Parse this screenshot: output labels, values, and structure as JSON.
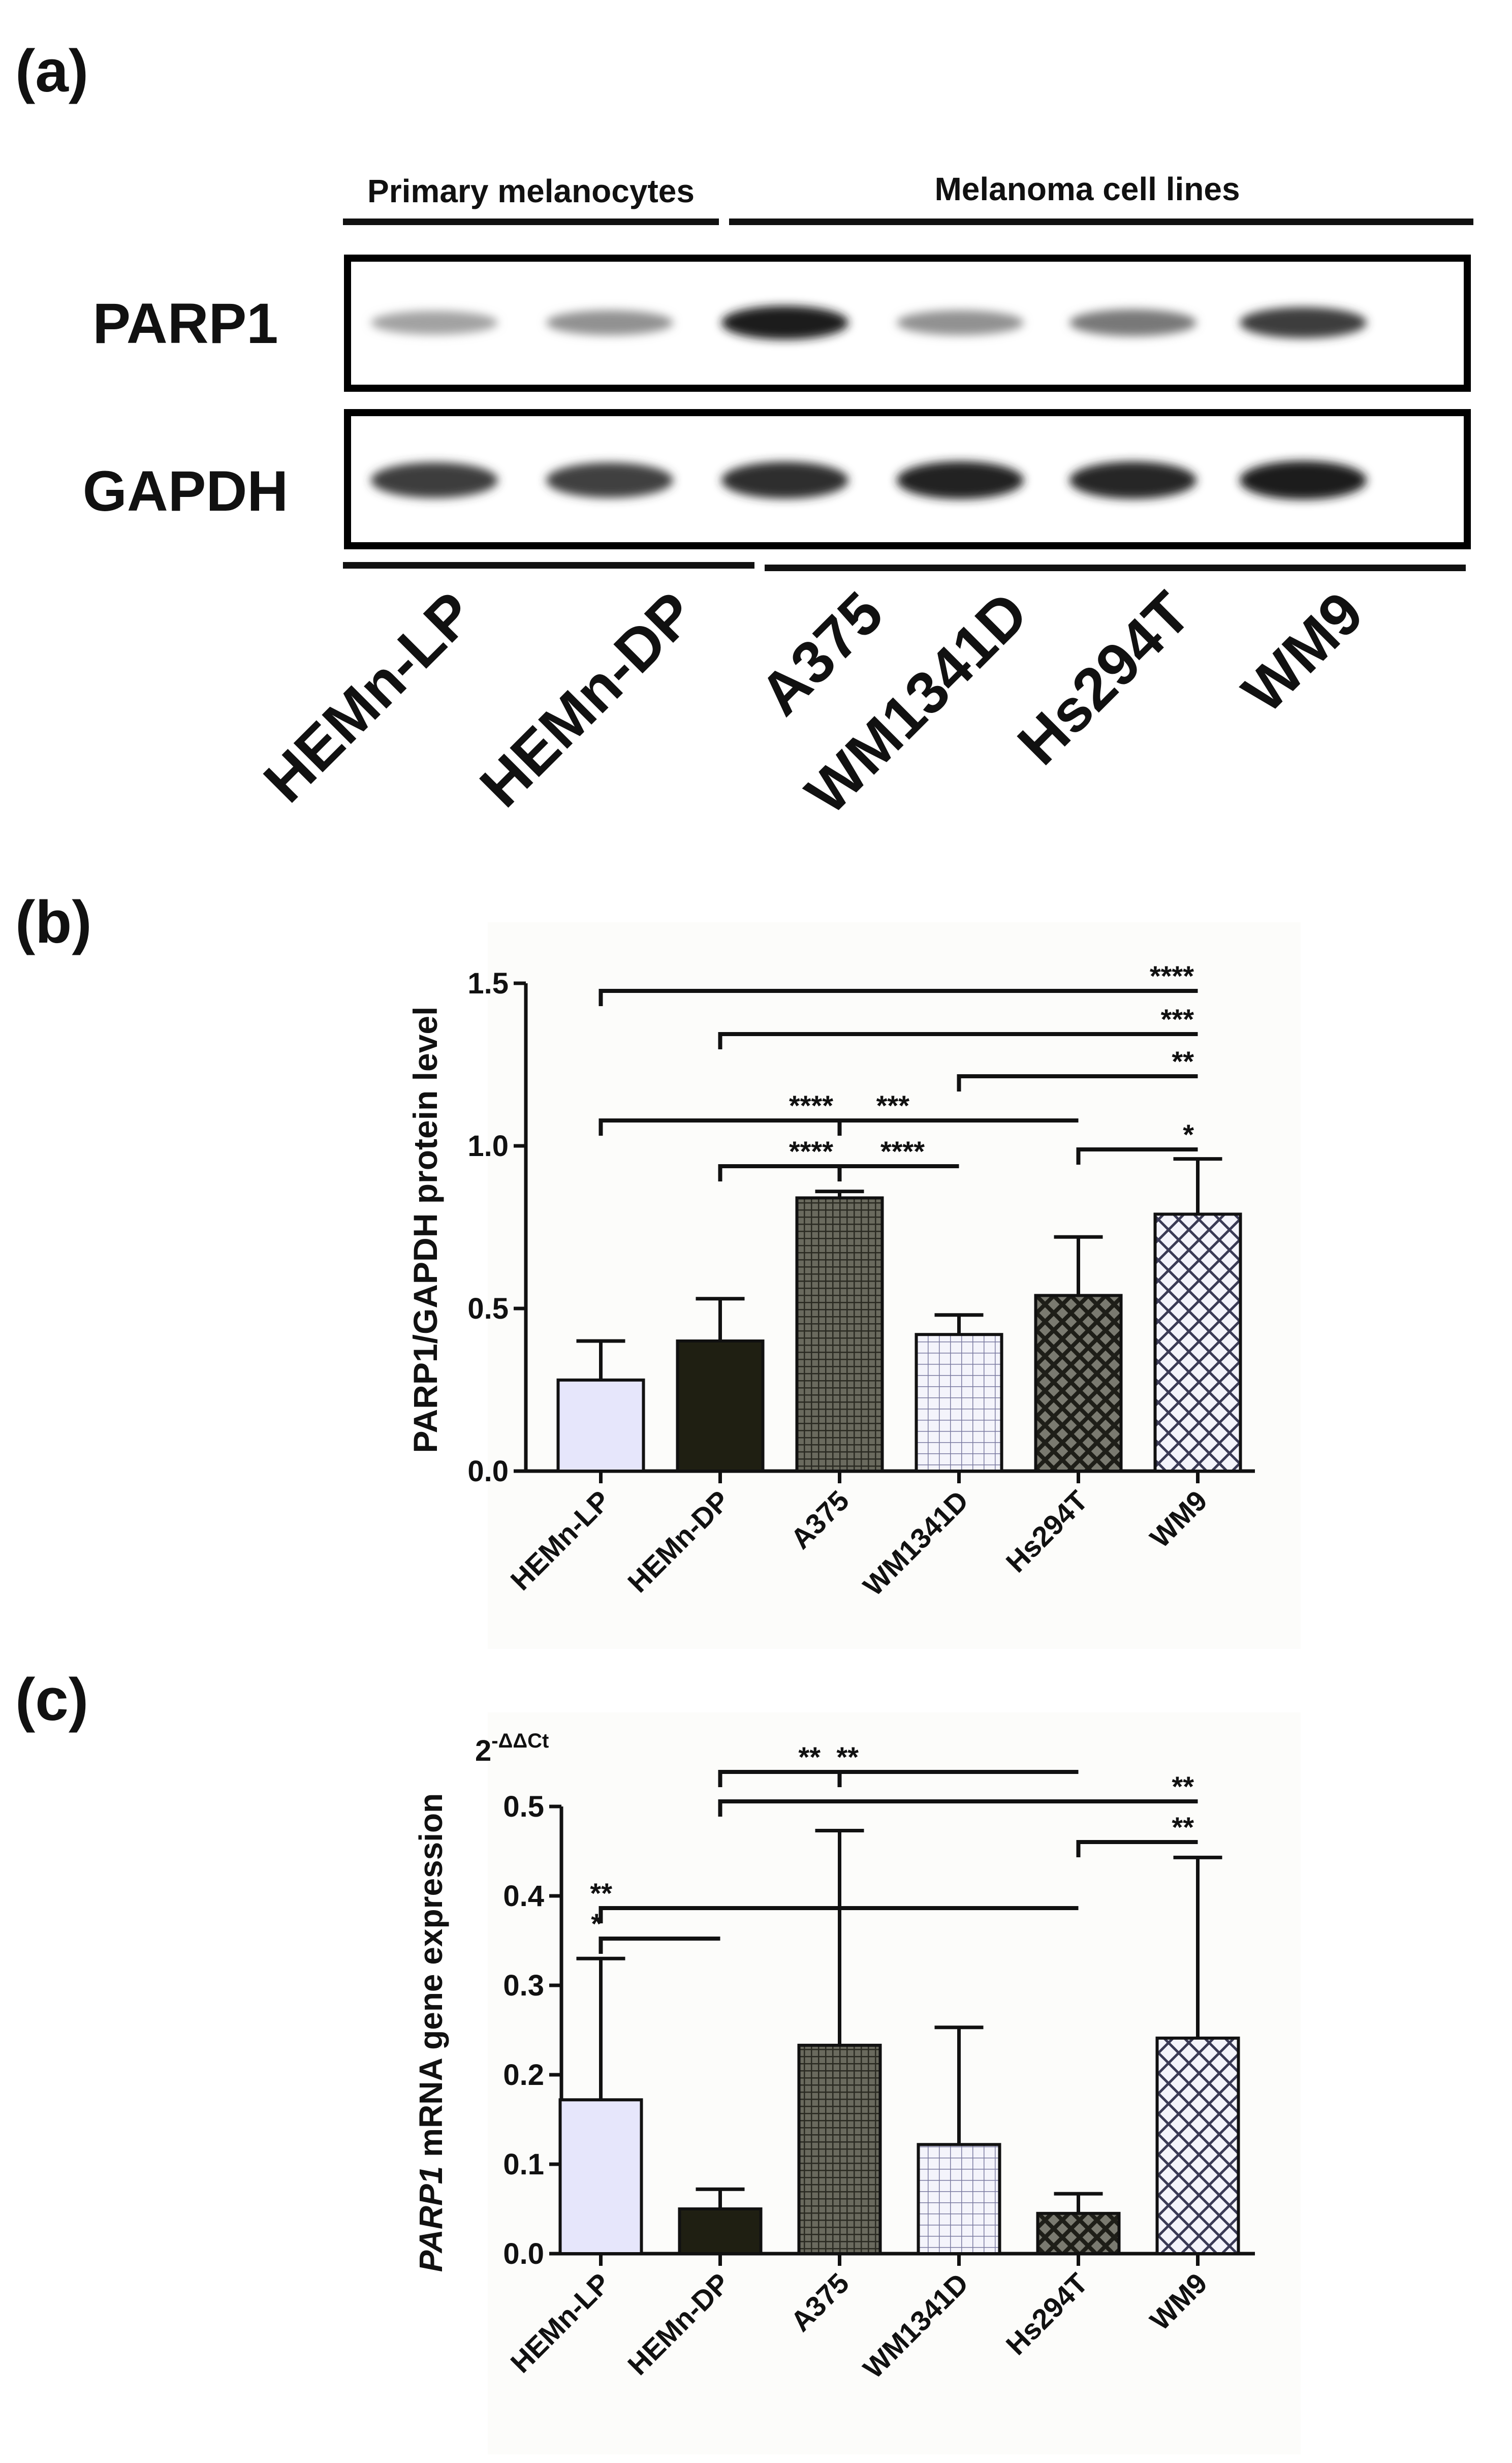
{
  "panels": {
    "a": {
      "label": "(a)",
      "group_primary": "Primary melanocytes",
      "group_melanoma": "Melanoma cell lines",
      "row_labels": [
        "PARP1",
        "GAPDH"
      ],
      "lanes": [
        "HEMn-LP",
        "HEMn-DP",
        "A375",
        "WM1341D",
        "Hs294T",
        "WM9"
      ],
      "band_intensity": {
        "PARP1": [
          0.3,
          0.38,
          0.95,
          0.38,
          0.5,
          0.78
        ],
        "GAPDH": [
          0.78,
          0.76,
          0.85,
          0.9,
          0.88,
          0.95
        ]
      }
    },
    "b": {
      "label": "(b)"
    },
    "c": {
      "label": "(c)"
    }
  },
  "chart_data": [
    {
      "panel": "b",
      "type": "bar",
      "categories": [
        "HEMn-LP",
        "HEMn-DP",
        "A375",
        "WM1341D",
        "Hs294T",
        "WM9"
      ],
      "values": [
        0.28,
        0.4,
        0.84,
        0.42,
        0.54,
        0.79
      ],
      "errors": [
        0.12,
        0.13,
        0.02,
        0.06,
        0.18,
        0.17
      ],
      "ylabel": "PARP1/GAPDH protein level",
      "ylim": [
        0,
        1.5
      ],
      "yticks": [
        "0.0",
        "0.5",
        "1.0",
        "1.5"
      ],
      "grid": false,
      "patterns": [
        "solid-lavender",
        "solid-dark",
        "fine-grid-dark",
        "grid-light",
        "crosshatch-dark",
        "crosshatch-light"
      ],
      "significance": [
        {
          "from": "HEMn-LP",
          "to": "WM9",
          "label": "****"
        },
        {
          "from": "HEMn-DP",
          "to": "WM9",
          "label": "***"
        },
        {
          "from": "WM1341D",
          "to": "WM9",
          "label": "**"
        },
        {
          "from": "HEMn-LP",
          "to": "A375",
          "label": "****"
        },
        {
          "from": "A375",
          "to": "Hs294T",
          "label": "***"
        },
        {
          "from": "Hs294T",
          "to": "WM9",
          "label": "*"
        },
        {
          "from": "HEMn-DP",
          "to": "A375",
          "label": "****"
        },
        {
          "from": "A375",
          "to": "WM1341D",
          "label": "****"
        }
      ]
    },
    {
      "panel": "c",
      "type": "bar",
      "categories": [
        "HEMn-LP",
        "HEMn-DP",
        "A375",
        "WM1341D",
        "Hs294T",
        "WM9"
      ],
      "values": [
        0.172,
        0.05,
        0.233,
        0.122,
        0.045,
        0.241
      ],
      "errors": [
        0.158,
        0.022,
        0.24,
        0.131,
        0.022,
        0.202
      ],
      "ylabel_italic": "PARP1",
      "ylabel": " mRNA gene expression",
      "unit_base": "2",
      "unit_exponent": "-ΔΔCt",
      "ylim": [
        0,
        0.5
      ],
      "yticks": [
        "0.0",
        "0.1",
        "0.2",
        "0.3",
        "0.4",
        "0.5"
      ],
      "grid": false,
      "patterns": [
        "solid-lavender",
        "solid-dark",
        "fine-grid-dark",
        "grid-light",
        "crosshatch-dark",
        "crosshatch-light"
      ],
      "significance": [
        {
          "from": "HEMn-DP",
          "to": "A375",
          "label": "**"
        },
        {
          "from": "A375",
          "to": "Hs294T",
          "label": "**"
        },
        {
          "from": "HEMn-DP",
          "to": "WM9",
          "label": "**"
        },
        {
          "from": "Hs294T",
          "to": "WM9",
          "label": "**"
        },
        {
          "from": "HEMn-LP",
          "to": "Hs294T",
          "label": "**"
        },
        {
          "from": "HEMn-LP",
          "to": "HEMn-DP",
          "label": "*"
        }
      ]
    }
  ]
}
